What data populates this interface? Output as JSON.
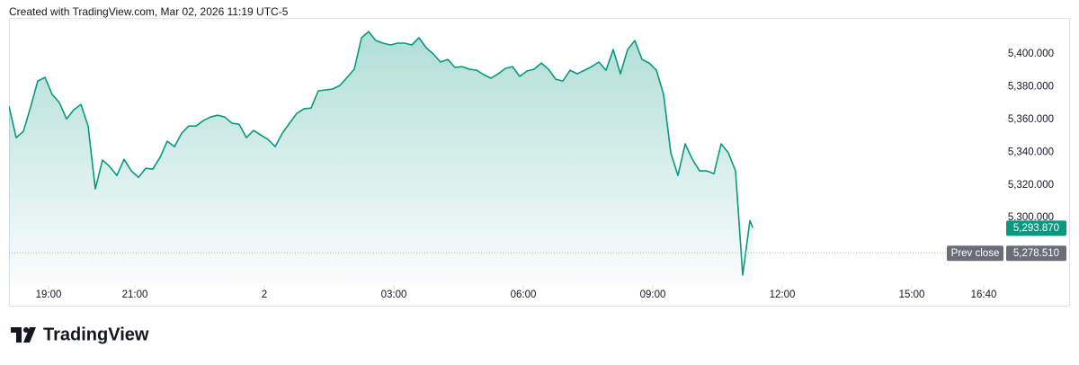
{
  "header": "Created with TradingView.com, Mar 02, 2026 11:19 UTC-5",
  "footer": {
    "brand": "TradingView"
  },
  "chart_data": {
    "type": "area",
    "color": "#089981",
    "x": [
      "18:05",
      "18:15",
      "18:25",
      "18:35",
      "18:45",
      "18:55",
      "19:05",
      "19:15",
      "19:25",
      "19:35",
      "19:45",
      "19:55",
      "20:05",
      "20:15",
      "20:25",
      "20:35",
      "20:45",
      "20:55",
      "21:05",
      "21:15",
      "21:25",
      "21:35",
      "21:45",
      "21:55",
      "22:05",
      "22:15",
      "22:25",
      "22:35",
      "22:45",
      "22:55",
      "23:05",
      "23:15",
      "23:25",
      "23:35",
      "23:45",
      "23:55",
      "00:05",
      "00:15",
      "00:25",
      "00:35",
      "00:45",
      "00:55",
      "01:05",
      "01:15",
      "01:25",
      "01:35",
      "01:45",
      "01:55",
      "02:05",
      "02:15",
      "02:25",
      "02:35",
      "02:45",
      "02:55",
      "03:05",
      "03:15",
      "03:25",
      "03:35",
      "03:45",
      "03:55",
      "04:05",
      "04:15",
      "04:25",
      "04:35",
      "04:45",
      "04:55",
      "05:05",
      "05:15",
      "05:25",
      "05:35",
      "05:45",
      "05:55",
      "06:05",
      "06:15",
      "06:25",
      "06:35",
      "06:45",
      "06:55",
      "07:05",
      "07:15",
      "07:25",
      "07:35",
      "07:45",
      "07:55",
      "08:05",
      "08:15",
      "08:25",
      "08:35",
      "08:45",
      "08:55",
      "09:05",
      "09:15",
      "09:25",
      "09:35",
      "09:45",
      "09:55",
      "10:05",
      "10:15",
      "10:25",
      "10:35",
      "10:45",
      "10:55",
      "11:05",
      "11:15",
      "11:19"
    ],
    "values": [
      5368.1,
      5348.9,
      5352.7,
      5367.6,
      5383.5,
      5385.7,
      5375.3,
      5370.3,
      5360.4,
      5365.9,
      5369.2,
      5356.0,
      5317.6,
      5335.2,
      5331.3,
      5325.8,
      5335.7,
      5328.6,
      5324.7,
      5330.2,
      5329.7,
      5336.8,
      5346.7,
      5343.4,
      5351.6,
      5356.0,
      5356.0,
      5359.3,
      5361.5,
      5362.6,
      5361.5,
      5357.7,
      5357.1,
      5348.9,
      5353.3,
      5350.5,
      5347.8,
      5343.4,
      5351.6,
      5357.7,
      5363.7,
      5366.5,
      5367.0,
      5377.5,
      5378.0,
      5378.6,
      5380.8,
      5385.7,
      5390.7,
      5409.9,
      5413.7,
      5408.2,
      5406.6,
      5405.5,
      5406.6,
      5406.6,
      5405.5,
      5409.9,
      5403.8,
      5400.0,
      5395.1,
      5396.7,
      5391.8,
      5392.3,
      5390.7,
      5390.1,
      5387.4,
      5385.2,
      5387.9,
      5391.2,
      5392.3,
      5386.3,
      5389.6,
      5390.7,
      5394.5,
      5390.7,
      5384.6,
      5383.5,
      5390.1,
      5387.9,
      5390.1,
      5392.3,
      5395.1,
      5390.1,
      5402.7,
      5387.9,
      5402.7,
      5408.2,
      5396.7,
      5394.5,
      5390.1,
      5375.3,
      5339.6,
      5325.8,
      5345.1,
      5335.7,
      5328.6,
      5328.6,
      5326.9,
      5345.1,
      5339.6,
      5328.6,
      5265.0,
      5298.3,
      5293.87
    ],
    "last_value_label": "5,293.870",
    "reference_line": {
      "label": "Prev close",
      "value": 5278.51,
      "value_label": "5,278.510"
    },
    "xlim": [
      "18:05",
      "17:10"
    ],
    "xticks": [
      "19:00",
      "21:00",
      {
        "value": "00:00",
        "label": "2"
      },
      "03:00",
      "06:00",
      "09:00",
      "12:00",
      "15:00",
      "16:40"
    ],
    "ylim": [
      5260,
      5422
    ],
    "yticks": [
      {
        "value": 5300,
        "label": "5,300.000"
      },
      {
        "value": 5320,
        "label": "5,320.000"
      },
      {
        "value": 5340,
        "label": "5,340.000"
      },
      {
        "value": 5360,
        "label": "5,360.000"
      },
      {
        "value": 5380,
        "label": "5,380.000"
      },
      {
        "value": 5400,
        "label": "5,400.000"
      }
    ],
    "grid": false
  }
}
